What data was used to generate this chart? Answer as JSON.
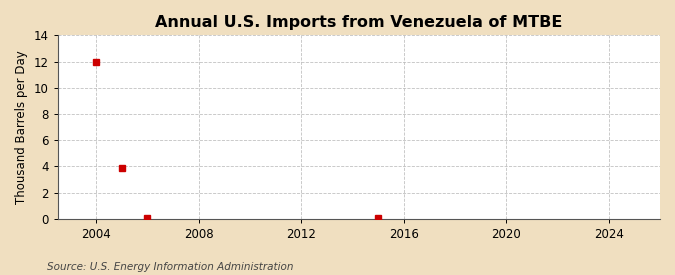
{
  "title": "Annual U.S. Imports from Venezuela of MTBE",
  "ylabel": "Thousand Barrels per Day",
  "source": "Source: U.S. Energy Information Administration",
  "fig_bg_color": "#f0dfc0",
  "plot_bg_color": "#ffffff",
  "grid_color": "#bbbbbb",
  "data_points": [
    {
      "year": 2004,
      "value": 12.0
    },
    {
      "year": 2005,
      "value": 3.9
    },
    {
      "year": 2006,
      "value": 0.05
    },
    {
      "year": 2015,
      "value": 0.05
    }
  ],
  "marker_color": "#cc0000",
  "marker_size": 4,
  "xlim": [
    2002.5,
    2026
  ],
  "ylim": [
    0,
    14
  ],
  "xticks": [
    2004,
    2008,
    2012,
    2016,
    2020,
    2024
  ],
  "yticks": [
    0,
    2,
    4,
    6,
    8,
    10,
    12,
    14
  ],
  "title_fontsize": 11.5,
  "label_fontsize": 8.5,
  "tick_fontsize": 8.5,
  "source_fontsize": 7.5
}
